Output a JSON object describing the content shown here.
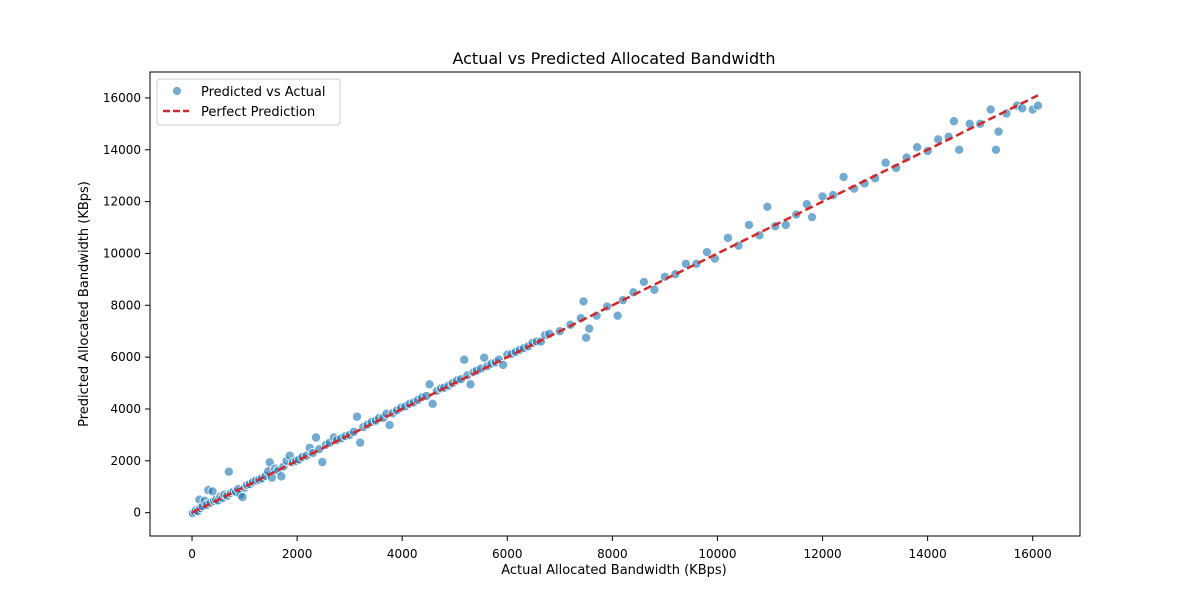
{
  "chart_data": {
    "type": "scatter",
    "title": "Actual vs Predicted Allocated Bandwidth",
    "xlabel": "Actual Allocated Bandwidth (KBps)",
    "ylabel": "Predicted Allocated Bandwidth (KBps)",
    "xlim": [
      -800,
      16900
    ],
    "ylim": [
      -900,
      17000
    ],
    "xticks": [
      0,
      2000,
      4000,
      6000,
      8000,
      10000,
      12000,
      14000,
      16000
    ],
    "yticks": [
      0,
      2000,
      4000,
      6000,
      8000,
      10000,
      12000,
      14000,
      16000
    ],
    "grid": false,
    "legend_position": "top-left",
    "series": [
      {
        "name": "Predicted vs Actual",
        "kind": "scatter",
        "color": "#1f77b4",
        "points": [
          [
            0,
            0
          ],
          [
            20,
            -20
          ],
          [
            50,
            40
          ],
          [
            80,
            100
          ],
          [
            110,
            60
          ],
          [
            140,
            500
          ],
          [
            160,
            180
          ],
          [
            200,
            250
          ],
          [
            240,
            460
          ],
          [
            280,
            300
          ],
          [
            310,
            870
          ],
          [
            350,
            380
          ],
          [
            390,
            820
          ],
          [
            420,
            450
          ],
          [
            460,
            500
          ],
          [
            500,
            470
          ],
          [
            540,
            620
          ],
          [
            580,
            560
          ],
          [
            620,
            700
          ],
          [
            670,
            650
          ],
          [
            700,
            1580
          ],
          [
            740,
            760
          ],
          [
            790,
            810
          ],
          [
            840,
            800
          ],
          [
            880,
            910
          ],
          [
            920,
            700
          ],
          [
            960,
            600
          ],
          [
            1000,
            960
          ],
          [
            1050,
            1070
          ],
          [
            1100,
            1100
          ],
          [
            1160,
            1190
          ],
          [
            1220,
            1240
          ],
          [
            1280,
            1270
          ],
          [
            1330,
            1320
          ],
          [
            1400,
            1420
          ],
          [
            1450,
            1600
          ],
          [
            1480,
            1940
          ],
          [
            1520,
            1350
          ],
          [
            1580,
            1700
          ],
          [
            1640,
            1620
          ],
          [
            1700,
            1400
          ],
          [
            1740,
            1780
          ],
          [
            1800,
            2000
          ],
          [
            1860,
            2200
          ],
          [
            1920,
            1950
          ],
          [
            1980,
            2000
          ],
          [
            2040,
            2050
          ],
          [
            2100,
            2150
          ],
          [
            2180,
            2200
          ],
          [
            2240,
            2500
          ],
          [
            2300,
            2300
          ],
          [
            2360,
            2900
          ],
          [
            2420,
            2450
          ],
          [
            2480,
            1950
          ],
          [
            2550,
            2620
          ],
          [
            2620,
            2700
          ],
          [
            2700,
            2900
          ],
          [
            2760,
            2800
          ],
          [
            2840,
            2870
          ],
          [
            2920,
            2950
          ],
          [
            3000,
            3000
          ],
          [
            3080,
            3120
          ],
          [
            3140,
            3700
          ],
          [
            3200,
            2700
          ],
          [
            3260,
            3300
          ],
          [
            3340,
            3400
          ],
          [
            3420,
            3500
          ],
          [
            3500,
            3550
          ],
          [
            3560,
            3650
          ],
          [
            3640,
            3660
          ],
          [
            3700,
            3820
          ],
          [
            3760,
            3380
          ],
          [
            3820,
            3840
          ],
          [
            3900,
            3950
          ],
          [
            3980,
            4050
          ],
          [
            4060,
            4100
          ],
          [
            4140,
            4200
          ],
          [
            4220,
            4250
          ],
          [
            4300,
            4350
          ],
          [
            4380,
            4450
          ],
          [
            4460,
            4500
          ],
          [
            4520,
            4950
          ],
          [
            4580,
            4200
          ],
          [
            4660,
            4700
          ],
          [
            4740,
            4800
          ],
          [
            4800,
            4820
          ],
          [
            4880,
            4900
          ],
          [
            4960,
            5000
          ],
          [
            5040,
            5100
          ],
          [
            5120,
            5150
          ],
          [
            5180,
            5900
          ],
          [
            5240,
            5300
          ],
          [
            5300,
            4950
          ],
          [
            5360,
            5420
          ],
          [
            5420,
            5480
          ],
          [
            5500,
            5560
          ],
          [
            5560,
            5980
          ],
          [
            5620,
            5650
          ],
          [
            5700,
            5750
          ],
          [
            5780,
            5800
          ],
          [
            5840,
            5900
          ],
          [
            5920,
            5700
          ],
          [
            6000,
            6100
          ],
          [
            6080,
            6120
          ],
          [
            6160,
            6200
          ],
          [
            6240,
            6280
          ],
          [
            6320,
            6350
          ],
          [
            6400,
            6420
          ],
          [
            6480,
            6550
          ],
          [
            6560,
            6600
          ],
          [
            6640,
            6600
          ],
          [
            6720,
            6850
          ],
          [
            6800,
            6900
          ],
          [
            7000,
            7000
          ],
          [
            7200,
            7250
          ],
          [
            7400,
            7500
          ],
          [
            7450,
            8150
          ],
          [
            7500,
            6750
          ],
          [
            7560,
            7100
          ],
          [
            7700,
            7600
          ],
          [
            7900,
            7950
          ],
          [
            8100,
            7600
          ],
          [
            8200,
            8200
          ],
          [
            8400,
            8500
          ],
          [
            8600,
            8900
          ],
          [
            8800,
            8600
          ],
          [
            9000,
            9100
          ],
          [
            9200,
            9200
          ],
          [
            9400,
            9600
          ],
          [
            9600,
            9600
          ],
          [
            9800,
            10050
          ],
          [
            9950,
            9800
          ],
          [
            10200,
            10600
          ],
          [
            10400,
            10300
          ],
          [
            10600,
            11100
          ],
          [
            10800,
            10700
          ],
          [
            10950,
            11800
          ],
          [
            11100,
            11050
          ],
          [
            11300,
            11100
          ],
          [
            11500,
            11500
          ],
          [
            11700,
            11900
          ],
          [
            11800,
            11400
          ],
          [
            12000,
            12200
          ],
          [
            12200,
            12250
          ],
          [
            12400,
            12950
          ],
          [
            12600,
            12500
          ],
          [
            12800,
            12700
          ],
          [
            13000,
            12900
          ],
          [
            13200,
            13500
          ],
          [
            13400,
            13300
          ],
          [
            13600,
            13700
          ],
          [
            13800,
            14100
          ],
          [
            14000,
            13950
          ],
          [
            14200,
            14400
          ],
          [
            14400,
            14500
          ],
          [
            14500,
            15100
          ],
          [
            14600,
            14000
          ],
          [
            14800,
            15000
          ],
          [
            15000,
            15000
          ],
          [
            15200,
            15550
          ],
          [
            15300,
            14000
          ],
          [
            15350,
            14700
          ],
          [
            15500,
            15400
          ],
          [
            15700,
            15700
          ],
          [
            15800,
            15600
          ],
          [
            16000,
            15550
          ],
          [
            16100,
            15700
          ]
        ]
      },
      {
        "name": "Perfect Prediction",
        "kind": "line",
        "color": "#d62728",
        "style": "dashed",
        "x": [
          0,
          16100
        ],
        "y": [
          0,
          16100
        ]
      }
    ]
  }
}
